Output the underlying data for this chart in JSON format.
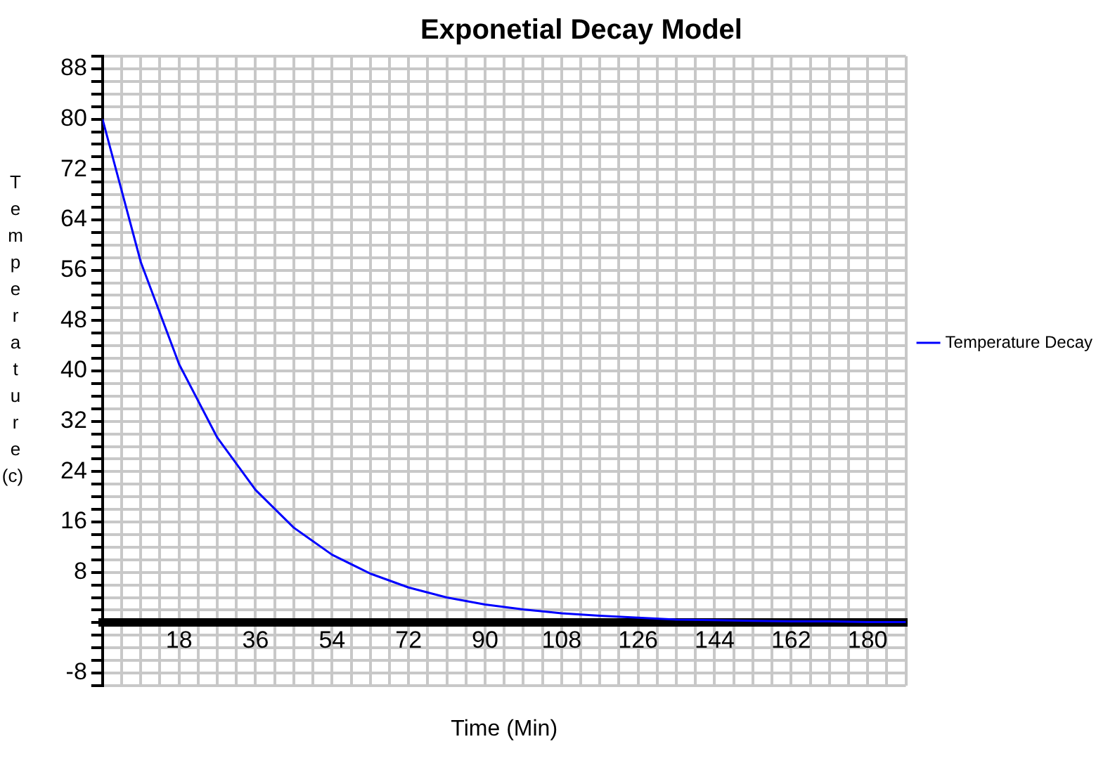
{
  "chart_data": {
    "type": "line",
    "title": "Exponetial Decay Model",
    "xlabel": "Time (Min)",
    "ylabel": "Temperature (c)",
    "x": [
      0,
      9,
      18,
      27,
      36,
      45,
      54,
      63,
      72,
      81,
      90,
      99,
      108,
      117,
      126,
      135,
      144,
      153,
      162,
      171,
      180,
      189
    ],
    "series": [
      {
        "name": "Temperature Decay",
        "color": "#0000ff",
        "values": [
          80,
          57.3,
          41.1,
          29.4,
          21.1,
          15.1,
          10.8,
          7.8,
          5.6,
          4.0,
          2.9,
          2.1,
          1.5,
          1.1,
          0.8,
          0.5,
          0.4,
          0.3,
          0.2,
          0.2,
          0.1,
          0.1
        ]
      }
    ],
    "xlim": [
      0,
      189
    ],
    "ylim": [
      -10,
      90
    ],
    "xticks": [
      {
        "value": 0,
        "label": null
      },
      {
        "value": 4.5,
        "label": null
      },
      {
        "value": 9,
        "label": null
      },
      {
        "value": 13.5,
        "label": null
      },
      18,
      {
        "value": 22.5,
        "label": null
      },
      {
        "value": 27,
        "label": null
      },
      {
        "value": 31.5,
        "label": null
      },
      36,
      {
        "value": 40.5,
        "label": null
      },
      {
        "value": 45,
        "label": null
      },
      {
        "value": 49.5,
        "label": null
      },
      54,
      {
        "value": 58.5,
        "label": null
      },
      {
        "value": 63,
        "label": null
      },
      {
        "value": 67.5,
        "label": null
      },
      72,
      {
        "value": 76.5,
        "label": null
      },
      {
        "value": 81,
        "label": null
      },
      {
        "value": 85.5,
        "label": null
      },
      90,
      {
        "value": 94.5,
        "label": null
      },
      {
        "value": 99,
        "label": null
      },
      {
        "value": 103.5,
        "label": null
      },
      108,
      {
        "value": 112.5,
        "label": null
      },
      {
        "value": 117,
        "label": null
      },
      {
        "value": 121.5,
        "label": null
      },
      126,
      {
        "value": 130.5,
        "label": null
      },
      {
        "value": 135,
        "label": null
      },
      {
        "value": 139.5,
        "label": null
      },
      144,
      {
        "value": 148.5,
        "label": null
      },
      {
        "value": 153,
        "label": null
      },
      {
        "value": 157.5,
        "label": null
      },
      162,
      {
        "value": 166.5,
        "label": null
      },
      {
        "value": 171,
        "label": null
      },
      {
        "value": 175.5,
        "label": null
      },
      180,
      {
        "value": 184.5,
        "label": null
      },
      {
        "value": 189,
        "label": null
      }
    ],
    "yticks": [
      {
        "value": -10,
        "label": null
      },
      -8,
      {
        "value": -6,
        "label": null
      },
      {
        "value": -4,
        "label": null
      },
      {
        "value": -2,
        "label": null
      },
      {
        "value": 0,
        "label": null
      },
      {
        "value": 2,
        "label": null
      },
      {
        "value": 4,
        "label": null
      },
      {
        "value": 6,
        "label": null
      },
      8,
      {
        "value": 10,
        "label": null
      },
      {
        "value": 12,
        "label": null
      },
      {
        "value": 14,
        "label": null
      },
      16,
      {
        "value": 18,
        "label": null
      },
      {
        "value": 20,
        "label": null
      },
      {
        "value": 22,
        "label": null
      },
      24,
      {
        "value": 26,
        "label": null
      },
      {
        "value": 28,
        "label": null
      },
      {
        "value": 30,
        "label": null
      },
      32,
      {
        "value": 34,
        "label": null
      },
      {
        "value": 36,
        "label": null
      },
      {
        "value": 38,
        "label": null
      },
      40,
      {
        "value": 42,
        "label": null
      },
      {
        "value": 44,
        "label": null
      },
      {
        "value": 46,
        "label": null
      },
      48,
      {
        "value": 50,
        "label": null
      },
      {
        "value": 52,
        "label": null
      },
      {
        "value": 54,
        "label": null
      },
      56,
      {
        "value": 58,
        "label": null
      },
      {
        "value": 60,
        "label": null
      },
      {
        "value": 62,
        "label": null
      },
      64,
      {
        "value": 66,
        "label": null
      },
      {
        "value": 68,
        "label": null
      },
      {
        "value": 70,
        "label": null
      },
      72,
      {
        "value": 74,
        "label": null
      },
      {
        "value": 76,
        "label": null
      },
      {
        "value": 78,
        "label": null
      },
      80,
      {
        "value": 82,
        "label": null
      },
      {
        "value": 84,
        "label": null
      },
      {
        "value": 86,
        "label": null
      },
      88,
      {
        "value": 90,
        "label": null
      }
    ],
    "grid": true,
    "legend": "right",
    "marker": "none"
  }
}
